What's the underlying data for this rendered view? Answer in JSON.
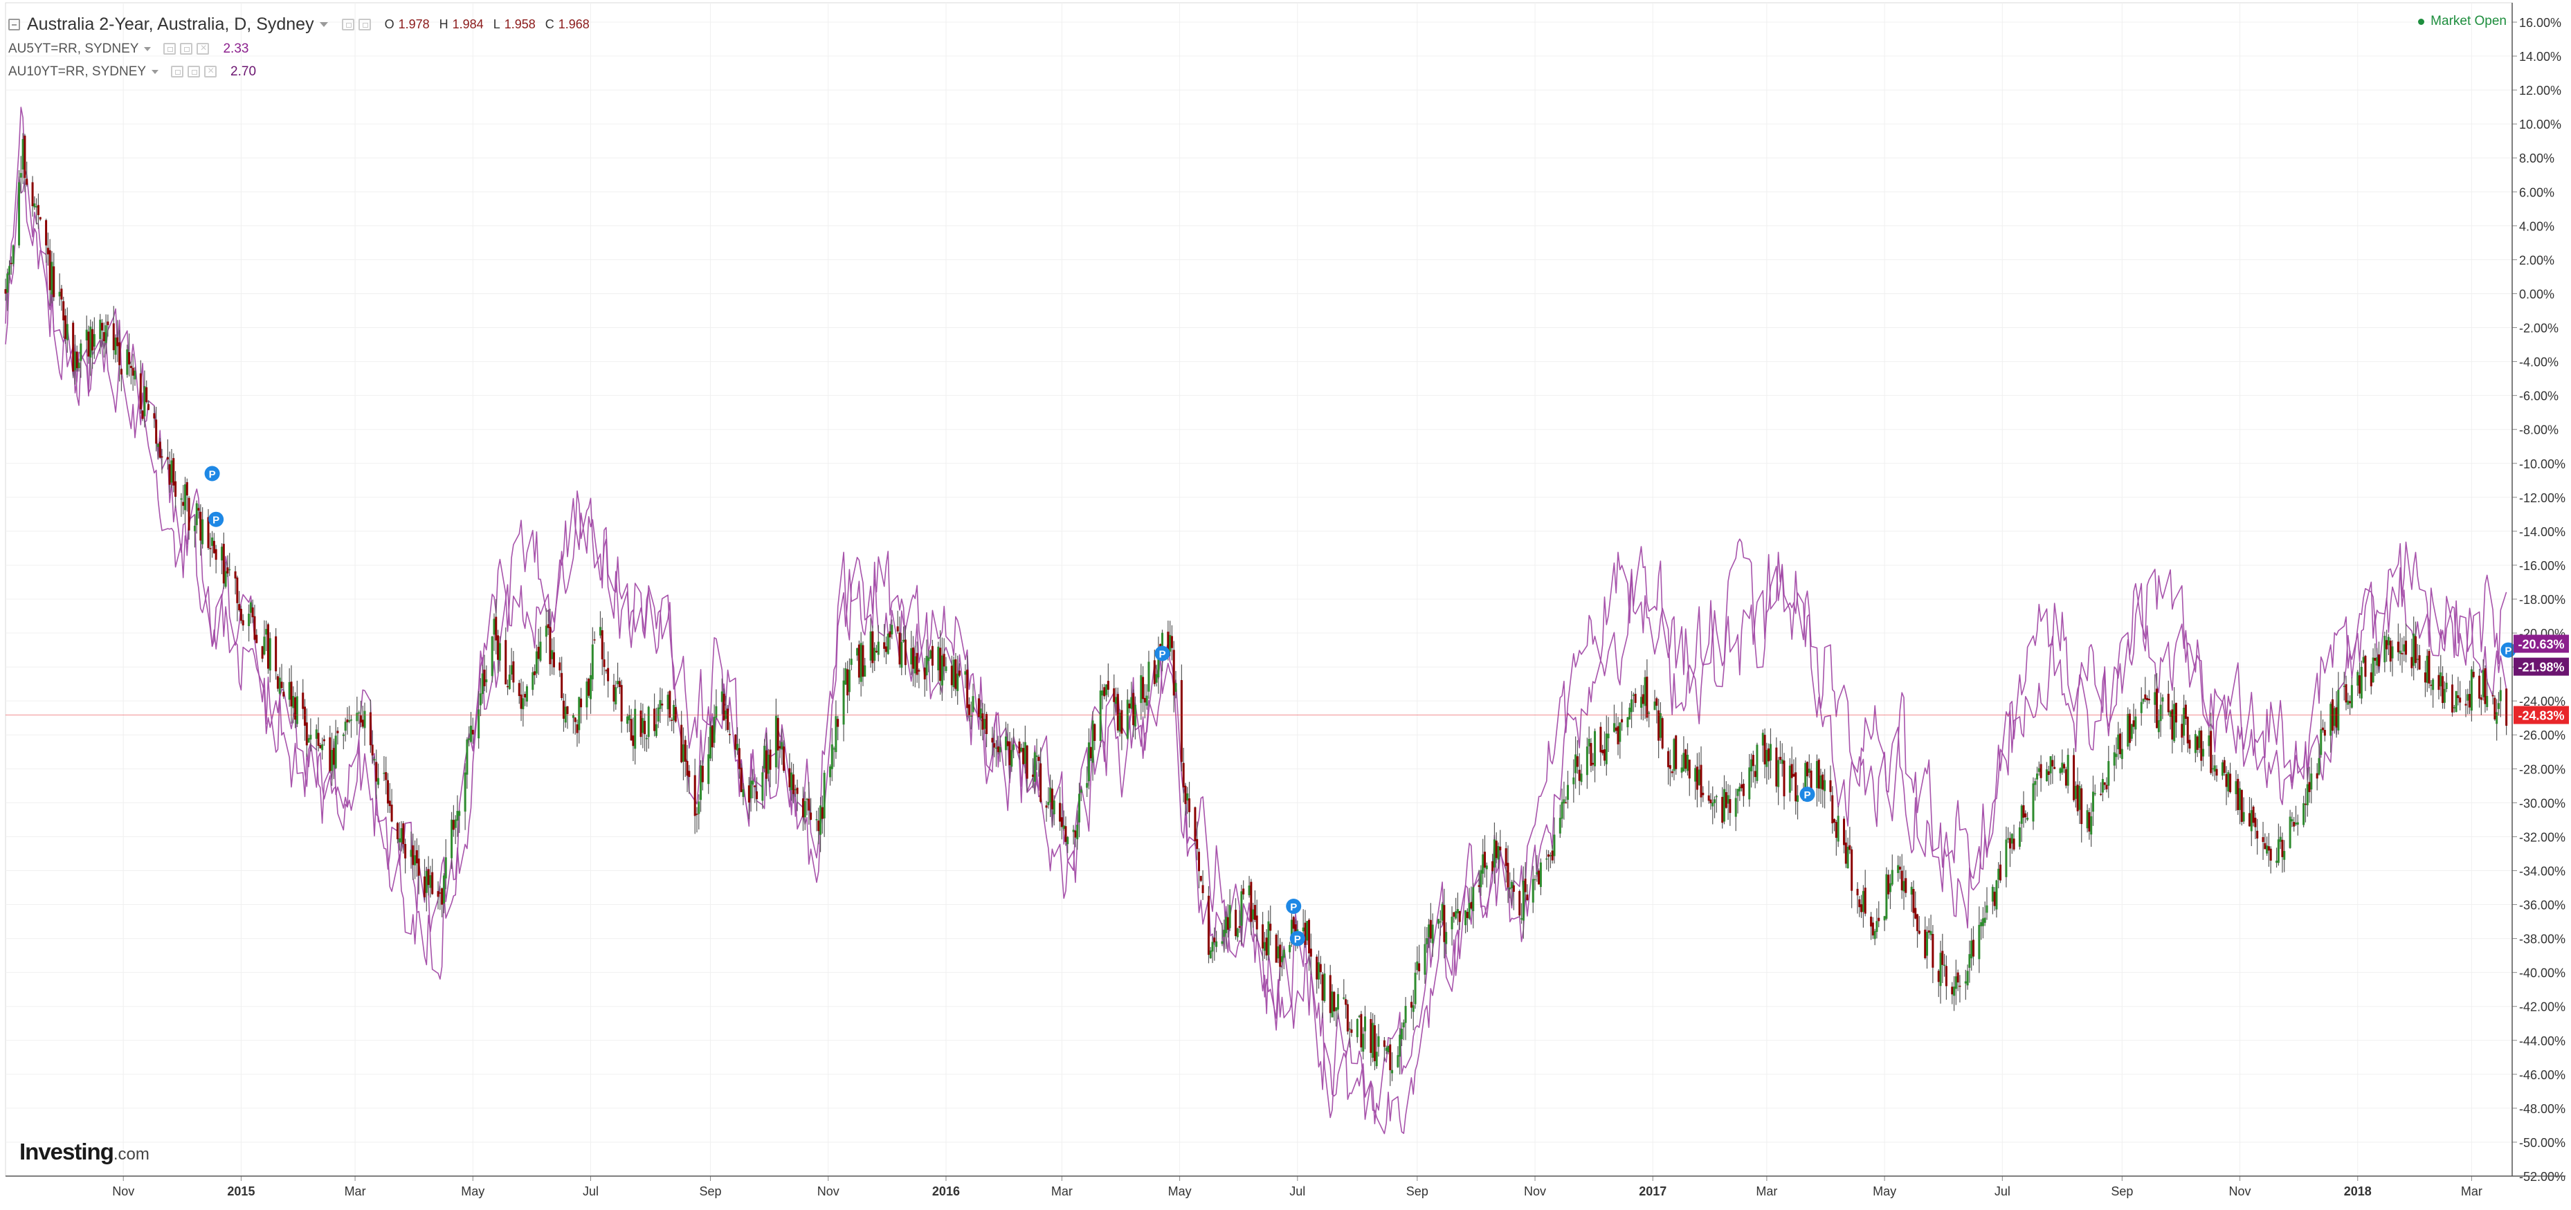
{
  "legend": {
    "main": {
      "symbol": "Australia 2-Year, Australia, D, Sydney",
      "open_key": "O",
      "open": "1.978",
      "high_key": "H",
      "high": "1.984",
      "low_key": "L",
      "low": "1.958",
      "close_key": "C",
      "close": "1.968"
    },
    "compare": [
      {
        "symbol": "AU5YT=RR, SYDNEY",
        "value": "2.33"
      },
      {
        "symbol": "AU10YT=RR, SYDNEY",
        "value": "2.70"
      }
    ]
  },
  "market_status": "Market Open",
  "logo": {
    "brand": "Investing",
    "domain": ".com"
  },
  "colors": {
    "up": "#2e8b2e",
    "down": "#8b0000",
    "wick": "#555555",
    "compare_line": "#a24aa6",
    "compare_label_1": "#8b1f8d",
    "compare_label_2": "#6b1570",
    "current_price": "#e8262a",
    "market_open": "#1e8e3e",
    "marker": "#1e88e5",
    "grid": "#f0f0f0"
  },
  "markers": {
    "label": "P"
  },
  "chart_data": {
    "type": "candlestick",
    "title": "Australia 2-Year, Australia, D, Sydney",
    "y_unit": "%",
    "ylim": [
      -52,
      16
    ],
    "y_ticks": [
      "16.00%",
      "14.00%",
      "12.00%",
      "10.00%",
      "8.00%",
      "6.00%",
      "4.00%",
      "2.00%",
      "0.00%",
      "-2.00%",
      "-4.00%",
      "-6.00%",
      "-8.00%",
      "-10.00%",
      "-12.00%",
      "-14.00%",
      "-16.00%",
      "-18.00%",
      "-20.00%",
      "-22.00%",
      "-24.00%",
      "-26.00%",
      "-28.00%",
      "-30.00%",
      "-32.00%",
      "-34.00%",
      "-36.00%",
      "-38.00%",
      "-40.00%",
      "-42.00%",
      "-44.00%",
      "-46.00%",
      "-48.00%",
      "-50.00%",
      "-52.00%"
    ],
    "x_range": [
      "2014-09-01",
      "2018-03-22"
    ],
    "x_ticks": [
      {
        "date": "2014-11-01",
        "label": "Nov",
        "bold": false
      },
      {
        "date": "2015-01-01",
        "label": "2015",
        "bold": true
      },
      {
        "date": "2015-03-01",
        "label": "Mar",
        "bold": false
      },
      {
        "date": "2015-05-01",
        "label": "May",
        "bold": false
      },
      {
        "date": "2015-07-01",
        "label": "Jul",
        "bold": false
      },
      {
        "date": "2015-09-01",
        "label": "Sep",
        "bold": false
      },
      {
        "date": "2015-11-01",
        "label": "Nov",
        "bold": false
      },
      {
        "date": "2016-01-01",
        "label": "2016",
        "bold": true
      },
      {
        "date": "2016-03-01",
        "label": "Mar",
        "bold": false
      },
      {
        "date": "2016-05-01",
        "label": "May",
        "bold": false
      },
      {
        "date": "2016-07-01",
        "label": "Jul",
        "bold": false
      },
      {
        "date": "2016-09-01",
        "label": "Sep",
        "bold": false
      },
      {
        "date": "2016-11-01",
        "label": "Nov",
        "bold": false
      },
      {
        "date": "2017-01-01",
        "label": "2017",
        "bold": true
      },
      {
        "date": "2017-03-01",
        "label": "Mar",
        "bold": false
      },
      {
        "date": "2017-05-01",
        "label": "May",
        "bold": false
      },
      {
        "date": "2017-07-01",
        "label": "Jul",
        "bold": false
      },
      {
        "date": "2017-09-01",
        "label": "Sep",
        "bold": false
      },
      {
        "date": "2017-11-01",
        "label": "Nov",
        "bold": false
      },
      {
        "date": "2018-01-01",
        "label": "2018",
        "bold": true
      },
      {
        "date": "2018-03-01",
        "label": "Mar",
        "bold": false
      }
    ],
    "main_series_anchors": [
      [
        "2014-09-01",
        0
      ],
      [
        "2014-09-10",
        8
      ],
      [
        "2014-09-22",
        2
      ],
      [
        "2014-10-06",
        -4
      ],
      [
        "2014-10-20",
        -2
      ],
      [
        "2014-11-03",
        -4
      ],
      [
        "2014-11-17",
        -8
      ],
      [
        "2014-12-01",
        -12
      ],
      [
        "2014-12-22",
        -16
      ],
      [
        "2015-01-19",
        -22
      ],
      [
        "2015-02-16",
        -28
      ],
      [
        "2015-03-02",
        -24
      ],
      [
        "2015-03-23",
        -32
      ],
      [
        "2015-04-13",
        -36
      ],
      [
        "2015-04-27",
        -28
      ],
      [
        "2015-05-11",
        -20
      ],
      [
        "2015-05-25",
        -24
      ],
      [
        "2015-06-08",
        -20
      ],
      [
        "2015-06-22",
        -26
      ],
      [
        "2015-07-06",
        -20
      ],
      [
        "2015-07-20",
        -26
      ],
      [
        "2015-08-10",
        -24
      ],
      [
        "2015-08-24",
        -30
      ],
      [
        "2015-09-07",
        -24
      ],
      [
        "2015-09-21",
        -30
      ],
      [
        "2015-10-05",
        -26
      ],
      [
        "2015-10-26",
        -32
      ],
      [
        "2015-11-09",
        -23
      ],
      [
        "2015-11-30",
        -20
      ],
      [
        "2015-12-14",
        -22
      ],
      [
        "2016-01-04",
        -22
      ],
      [
        "2016-01-25",
        -26
      ],
      [
        "2016-02-15",
        -28
      ],
      [
        "2016-03-07",
        -32
      ],
      [
        "2016-03-21",
        -24
      ],
      [
        "2016-04-04",
        -25
      ],
      [
        "2016-04-18",
        -22
      ],
      [
        "2016-04-26",
        -20
      ],
      [
        "2016-05-02",
        -28
      ],
      [
        "2016-05-16",
        -38
      ],
      [
        "2016-06-06",
        -36
      ],
      [
        "2016-06-20",
        -39
      ],
      [
        "2016-07-04",
        -37
      ],
      [
        "2016-07-18",
        -42
      ],
      [
        "2016-08-08",
        -44
      ],
      [
        "2016-08-22",
        -45
      ],
      [
        "2016-09-05",
        -38
      ],
      [
        "2016-09-26",
        -36
      ],
      [
        "2016-10-10",
        -33
      ],
      [
        "2016-10-24",
        -36
      ],
      [
        "2016-11-07",
        -34
      ],
      [
        "2016-11-21",
        -28
      ],
      [
        "2016-12-12",
        -26
      ],
      [
        "2016-12-26",
        -23
      ],
      [
        "2017-01-09",
        -27
      ],
      [
        "2017-02-06",
        -30
      ],
      [
        "2017-02-27",
        -27
      ],
      [
        "2017-03-13",
        -29
      ],
      [
        "2017-03-27",
        -28
      ],
      [
        "2017-04-10",
        -33
      ],
      [
        "2017-04-24",
        -37
      ],
      [
        "2017-05-08",
        -34
      ],
      [
        "2017-05-22",
        -38
      ],
      [
        "2017-06-05",
        -41
      ],
      [
        "2017-06-19",
        -38
      ],
      [
        "2017-07-03",
        -33
      ],
      [
        "2017-07-17",
        -29
      ],
      [
        "2017-07-31",
        -27
      ],
      [
        "2017-08-14",
        -31
      ],
      [
        "2017-08-28",
        -27
      ],
      [
        "2017-09-11",
        -24
      ],
      [
        "2017-09-25",
        -25
      ],
      [
        "2017-10-09",
        -26
      ],
      [
        "2017-10-23",
        -28
      ],
      [
        "2017-11-06",
        -31
      ],
      [
        "2017-11-20",
        -33
      ],
      [
        "2017-12-04",
        -30
      ],
      [
        "2017-12-18",
        -25
      ],
      [
        "2018-01-08",
        -22
      ],
      [
        "2018-01-22",
        -20
      ],
      [
        "2018-02-05",
        -22
      ],
      [
        "2018-02-19",
        -24
      ],
      [
        "2018-03-05",
        -23
      ],
      [
        "2018-03-19",
        -24.83
      ]
    ],
    "compare_series_anchors": [
      [
        "2014-09-01",
        0
      ],
      [
        "2014-09-10",
        9
      ],
      [
        "2014-09-22",
        2
      ],
      [
        "2014-10-06",
        -4
      ],
      [
        "2014-10-20",
        -3
      ],
      [
        "2014-11-03",
        -4
      ],
      [
        "2014-11-17",
        -8
      ],
      [
        "2014-12-01",
        -14
      ],
      [
        "2014-12-22",
        -17
      ],
      [
        "2015-01-19",
        -24
      ],
      [
        "2015-02-16",
        -29
      ],
      [
        "2015-03-02",
        -26
      ],
      [
        "2015-03-23",
        -33
      ],
      [
        "2015-04-13",
        -37
      ],
      [
        "2015-04-27",
        -30
      ],
      [
        "2015-05-11",
        -20
      ],
      [
        "2015-05-25",
        -16
      ],
      [
        "2015-06-08",
        -18
      ],
      [
        "2015-06-22",
        -12
      ],
      [
        "2015-07-06",
        -14
      ],
      [
        "2015-07-20",
        -17
      ],
      [
        "2015-08-10",
        -20
      ],
      [
        "2015-08-24",
        -26
      ],
      [
        "2015-09-07",
        -22
      ],
      [
        "2015-09-21",
        -28
      ],
      [
        "2015-10-05",
        -26
      ],
      [
        "2015-10-26",
        -32
      ],
      [
        "2015-11-09",
        -17
      ],
      [
        "2015-11-30",
        -16
      ],
      [
        "2015-12-14",
        -20
      ],
      [
        "2016-01-04",
        -21
      ],
      [
        "2016-01-25",
        -25
      ],
      [
        "2016-02-15",
        -28
      ],
      [
        "2016-03-07",
        -33
      ],
      [
        "2016-03-21",
        -25
      ],
      [
        "2016-04-04",
        -26
      ],
      [
        "2016-04-18",
        -24
      ],
      [
        "2016-04-26",
        -20
      ],
      [
        "2016-05-02",
        -30
      ],
      [
        "2016-05-16",
        -35
      ],
      [
        "2016-06-06",
        -36
      ],
      [
        "2016-06-20",
        -41
      ],
      [
        "2016-07-04",
        -39
      ],
      [
        "2016-07-18",
        -45
      ],
      [
        "2016-08-08",
        -46
      ],
      [
        "2016-08-22",
        -47
      ],
      [
        "2016-09-05",
        -40
      ],
      [
        "2016-09-26",
        -36
      ],
      [
        "2016-10-10",
        -33
      ],
      [
        "2016-10-24",
        -35
      ],
      [
        "2016-11-07",
        -30
      ],
      [
        "2016-11-21",
        -23
      ],
      [
        "2016-12-12",
        -18
      ],
      [
        "2016-12-26",
        -17
      ],
      [
        "2017-01-09",
        -21
      ],
      [
        "2017-02-06",
        -20
      ],
      [
        "2017-02-27",
        -18
      ],
      [
        "2017-03-13",
        -16
      ],
      [
        "2017-03-27",
        -21
      ],
      [
        "2017-04-10",
        -26
      ],
      [
        "2017-04-24",
        -28
      ],
      [
        "2017-05-08",
        -27
      ],
      [
        "2017-05-22",
        -30
      ],
      [
        "2017-06-05",
        -33
      ],
      [
        "2017-06-19",
        -32
      ],
      [
        "2017-07-03",
        -25
      ],
      [
        "2017-07-17",
        -21
      ],
      [
        "2017-07-31",
        -20
      ],
      [
        "2017-08-14",
        -24
      ],
      [
        "2017-08-28",
        -22
      ],
      [
        "2017-09-11",
        -18
      ],
      [
        "2017-09-25",
        -19
      ],
      [
        "2017-10-09",
        -21
      ],
      [
        "2017-10-23",
        -24
      ],
      [
        "2017-11-06",
        -26
      ],
      [
        "2017-11-20",
        -27
      ],
      [
        "2017-12-04",
        -26
      ],
      [
        "2017-12-18",
        -23
      ],
      [
        "2018-01-08",
        -19
      ],
      [
        "2018-01-22",
        -16
      ],
      [
        "2018-02-05",
        -18
      ],
      [
        "2018-02-19",
        -19
      ],
      [
        "2018-03-05",
        -18
      ],
      [
        "2018-03-19",
        -20.63
      ]
    ],
    "current_labels": [
      {
        "value": -20.63,
        "text": "-20.63%",
        "series": "AU5YT=RR, SYDNEY"
      },
      {
        "value": -21.98,
        "text": "-21.98%",
        "series": "AU10YT=RR, SYDNEY"
      },
      {
        "value": -24.83,
        "text": "-24.83%",
        "series": "Australia 2-Year, Australia, D, Sydney"
      }
    ],
    "markers": [
      {
        "date": "2014-12-17",
        "value": -10.6
      },
      {
        "date": "2014-12-19",
        "value": -13.3
      },
      {
        "date": "2016-04-22",
        "value": -21.2
      },
      {
        "date": "2016-06-29",
        "value": -36.1
      },
      {
        "date": "2016-07-01",
        "value": -38.0
      },
      {
        "date": "2017-03-22",
        "value": -29.5
      },
      {
        "date": "2018-03-20",
        "value": -21.0
      }
    ]
  }
}
